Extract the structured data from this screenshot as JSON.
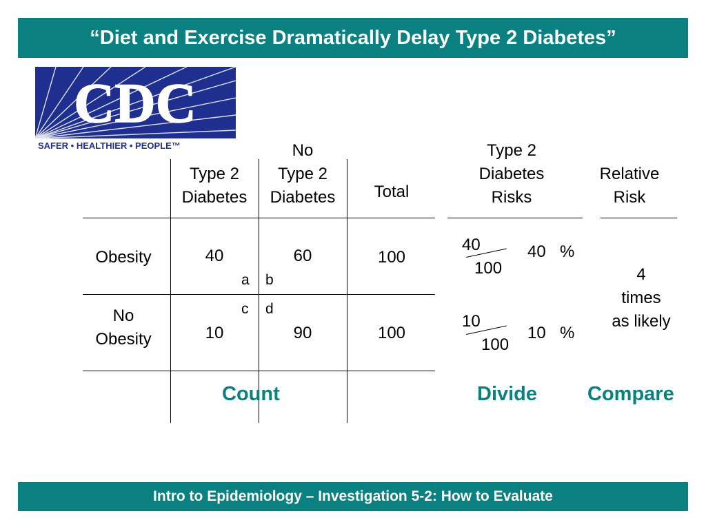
{
  "title": "“Diet and Exercise Dramatically Delay Type 2 Diabetes”",
  "logo": {
    "text": "CDC",
    "tagline": "SAFER • HEALTHIER • PEOPLE™"
  },
  "table": {
    "headers": {
      "type2": [
        "Type 2",
        "Diabetes"
      ],
      "no_type2": [
        "No",
        "Type 2",
        "Diabetes"
      ],
      "total": "Total"
    },
    "rows": [
      {
        "label": [
          "Obesity"
        ],
        "type2": "40",
        "no_type2": "60",
        "total": "100"
      },
      {
        "label": [
          "No",
          "Obesity"
        ],
        "type2": "10",
        "no_type2": "90",
        "total": "100"
      }
    ],
    "cell_letters": {
      "a": "a",
      "b": "b",
      "c": "c",
      "d": "d"
    }
  },
  "risks": {
    "header": [
      "Type 2",
      "Diabetes",
      "Risks"
    ],
    "rows": [
      {
        "numerator": "40",
        "denominator": "100",
        "percent_value": "40",
        "percent_sign": "%"
      },
      {
        "numerator": "10",
        "denominator": "100",
        "percent_value": "10",
        "percent_sign": "%"
      }
    ]
  },
  "relative_risk": {
    "header": [
      "Relative",
      "Risk"
    ],
    "value": [
      "4",
      "times",
      "as likely"
    ]
  },
  "steps": {
    "count": "Count",
    "divide": "Divide",
    "compare": "Compare"
  },
  "footer": "Intro to Epidemiology – Investigation 5-2:  How to Evaluate",
  "colors": {
    "banner": "#0a8080",
    "accent": "#0a8080",
    "logo_blue": "#1f2f8f"
  }
}
